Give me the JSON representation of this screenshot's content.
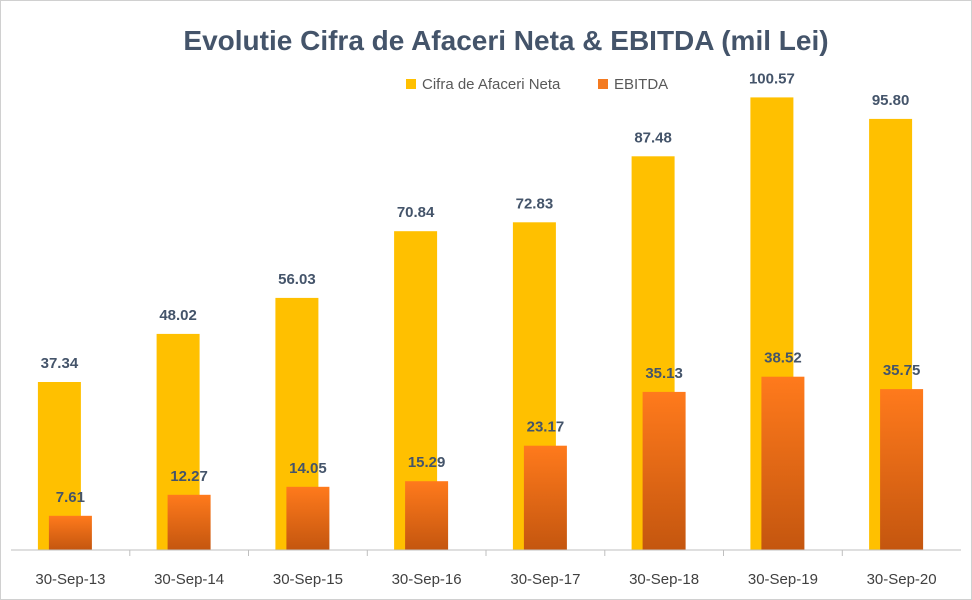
{
  "chart_data": {
    "type": "bar",
    "title": "Evolutie Cifra de Afaceri Neta & EBITDA (mil Lei)",
    "categories": [
      "30-Sep-13",
      "30-Sep-14",
      "30-Sep-15",
      "30-Sep-16",
      "30-Sep-17",
      "30-Sep-18",
      "30-Sep-19",
      "30-Sep-20"
    ],
    "series": [
      {
        "name": "Cifra de Afaceri Neta",
        "color": "#FFC000",
        "values": [
          37.34,
          48.02,
          56.03,
          70.84,
          72.83,
          87.48,
          100.57,
          95.8
        ]
      },
      {
        "name": "EBITDA",
        "color": "#F47A20",
        "values": [
          7.61,
          12.27,
          14.05,
          15.29,
          23.17,
          35.13,
          38.52,
          35.75
        ]
      }
    ],
    "data_label_format": "0.00",
    "ylim": [
      0,
      110
    ],
    "grid": false,
    "legend_position": "top-right",
    "xlabel": "",
    "ylabel": ""
  }
}
